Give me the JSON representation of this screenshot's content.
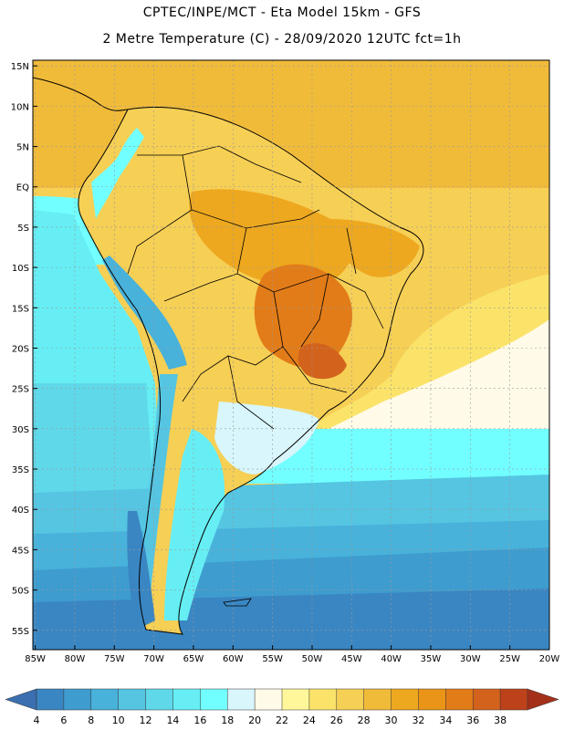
{
  "header": {
    "line1": "CPTEC/INPE/MCT -  Eta Model 15km - GFS",
    "line2": "2 Metre Temperature (C) - 28/09/2020 12UTC fct=1h"
  },
  "map": {
    "lat_labels": [
      "15N",
      "10N",
      "5N",
      "EQ",
      "5S",
      "10S",
      "15S",
      "20S",
      "25S",
      "30S",
      "35S",
      "40S",
      "45S",
      "50S",
      "55S"
    ],
    "lon_labels": [
      "85W",
      "80W",
      "75W",
      "70W",
      "65W",
      "60W",
      "55W",
      "50W",
      "45W",
      "40W",
      "35W",
      "30W",
      "25W",
      "20W"
    ],
    "lat_range": [
      15.7,
      -57.4
    ],
    "lon_range": [
      -85.3,
      -20.0
    ]
  },
  "colorbar": {
    "labels": [
      "4",
      "6",
      "8",
      "10",
      "12",
      "14",
      "16",
      "18",
      "20",
      "22",
      "24",
      "26",
      "28",
      "30",
      "32",
      "34",
      "36",
      "38"
    ],
    "colors": [
      "#3b6fb0",
      "#3a86c2",
      "#3e9ccf",
      "#48b2da",
      "#55c5e2",
      "#5fd8ea",
      "#66eef4",
      "#72ffff",
      "#d8f6fb",
      "#fffbe8",
      "#fff79a",
      "#fbe36a",
      "#f6cf55",
      "#f1bb3a",
      "#eda820",
      "#ea9418",
      "#e27c18",
      "#d2621c",
      "#bd421a",
      "#a4301a"
    ]
  }
}
